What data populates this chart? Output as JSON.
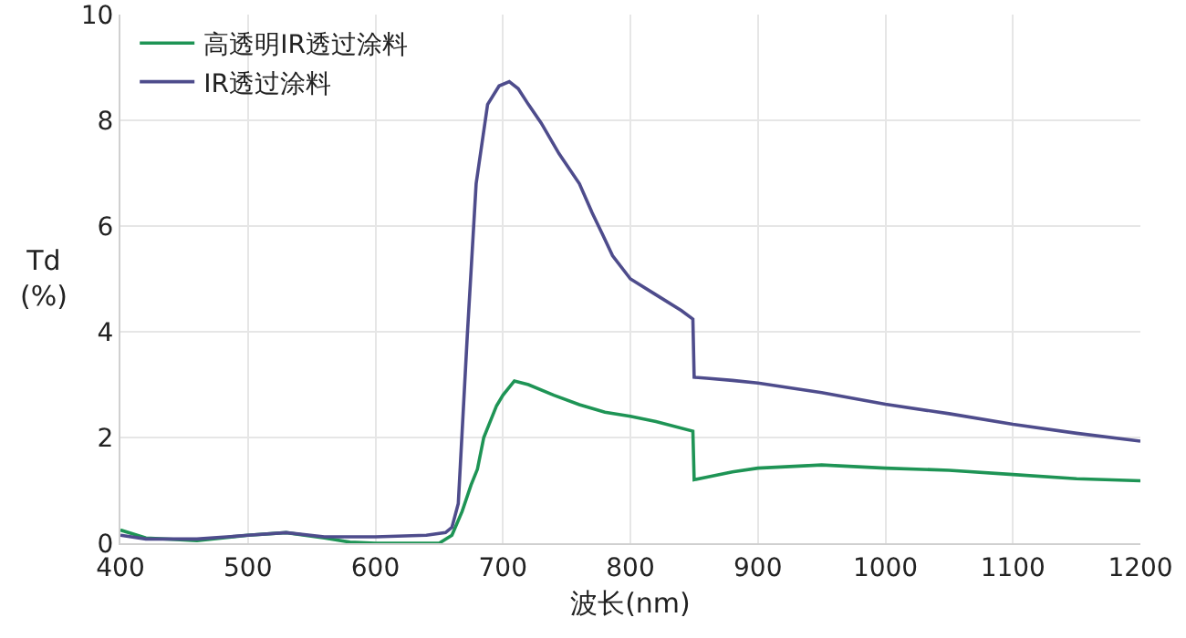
{
  "chart_data": {
    "type": "line",
    "xlabel": "波长(nm)",
    "ylabel": "Td\n(%)",
    "xlim": [
      400,
      1200
    ],
    "xticks": [
      400,
      500,
      600,
      700,
      800,
      900,
      1000,
      1100,
      1200
    ],
    "ylim": [
      0,
      10
    ],
    "yticks": [
      0,
      2,
      4,
      6,
      8,
      10
    ],
    "grid": true,
    "legend": "top left",
    "marker": "none",
    "line_style": "solid",
    "series": [
      {
        "name": "高透明IR透过涂料",
        "color": "#1e9455",
        "x": [
          400,
          420,
          460,
          500,
          530,
          560,
          580,
          600,
          650,
          660,
          668,
          675,
          680,
          685,
          695,
          700,
          709,
          720,
          740,
          760,
          780,
          800,
          820,
          849,
          850,
          860,
          880,
          900,
          950,
          1000,
          1050,
          1100,
          1150,
          1200
        ],
        "values": [
          0.25,
          0.1,
          0.05,
          0.15,
          0.2,
          0.1,
          0.02,
          0,
          0,
          0.15,
          0.6,
          1.1,
          1.4,
          2.0,
          2.6,
          2.8,
          3.07,
          3.0,
          2.8,
          2.62,
          2.48,
          2.4,
          2.3,
          2.12,
          1.2,
          1.25,
          1.35,
          1.42,
          1.48,
          1.42,
          1.38,
          1.3,
          1.22,
          1.18
        ]
      },
      {
        "name": "IR透过涂料",
        "color": "#4e4c8c",
        "x": [
          400,
          420,
          460,
          500,
          530,
          560,
          600,
          640,
          655,
          660,
          665,
          672,
          679,
          688,
          697,
          705,
          712,
          720,
          730,
          744,
          760,
          770,
          778,
          786,
          800,
          820,
          840,
          849,
          850,
          860,
          880,
          900,
          950,
          1000,
          1050,
          1100,
          1150,
          1200
        ],
        "values": [
          0.15,
          0.08,
          0.08,
          0.15,
          0.2,
          0.12,
          0.12,
          0.15,
          0.2,
          0.3,
          0.75,
          3.9,
          6.8,
          8.3,
          8.65,
          8.73,
          8.6,
          8.3,
          7.95,
          7.37,
          6.8,
          6.25,
          5.85,
          5.44,
          5.0,
          4.7,
          4.4,
          4.24,
          3.14,
          3.12,
          3.08,
          3.03,
          2.85,
          2.63,
          2.45,
          2.25,
          2.08,
          1.93
        ]
      }
    ]
  }
}
